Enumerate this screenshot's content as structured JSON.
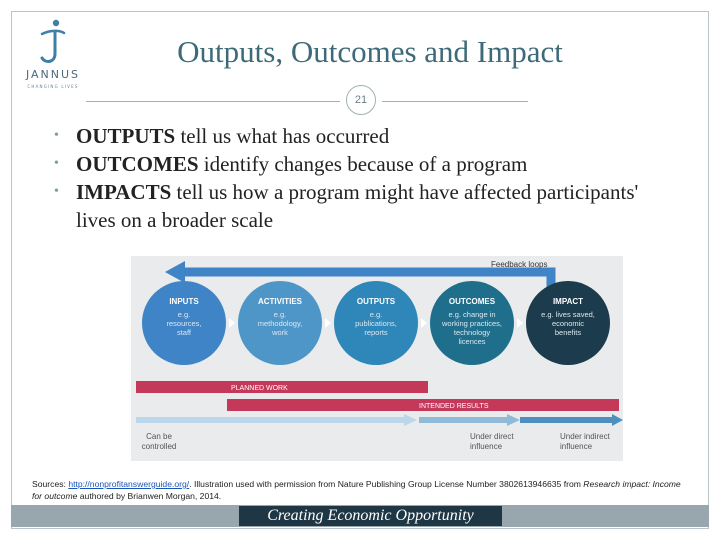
{
  "slide": {
    "title": "Outputs, Outcomes and Impact",
    "number": "21",
    "logo": {
      "word": "JANNUS",
      "tagline": "CHANGING LIVES"
    },
    "bullets": [
      {
        "bold": "OUTPUTS",
        "rest": " tell us what has occurred"
      },
      {
        "bold": "OUTCOMES",
        "rest": " identify changes because of a program"
      },
      {
        "bold": "IMPACTS",
        "rest": " tell us how a program might have affected participants' lives on a broader scale"
      }
    ],
    "footer": "Creating Economic Opportunity"
  },
  "diagram": {
    "feedback_label": "Feedback loops",
    "stages": [
      {
        "title": "INPUTS",
        "detail_lines": [
          "e.g.",
          "resources,",
          "staff"
        ],
        "color": "#3f84c6"
      },
      {
        "title": "ACTIVITIES",
        "detail_lines": [
          "e.g.",
          "methodology,",
          "work"
        ],
        "color": "#4f96c8"
      },
      {
        "title": "OUTPUTS",
        "detail_lines": [
          "e.g.",
          "publications,",
          "reports"
        ],
        "color": "#2f86b8"
      },
      {
        "title": "OUTCOMES",
        "detail_lines": [
          "e.g. change in",
          "working practices,",
          "technology",
          "licences"
        ],
        "color": "#1f6f8c"
      },
      {
        "title": "IMPACT",
        "detail_lines": [
          "e.g. lives saved,",
          "economic",
          "benefits"
        ],
        "color": "#1c3b4c"
      }
    ],
    "bars": [
      {
        "label": "PLANNED WORK",
        "color": "#c4385a"
      },
      {
        "label": "INTENDED RESULTS",
        "color": "#c4385a"
      }
    ],
    "influence": [
      {
        "lines": [
          "Can be",
          "controlled"
        ]
      },
      {
        "lines": [
          "Under direct",
          "influence"
        ]
      },
      {
        "lines": [
          "Under indirect",
          "influence"
        ]
      }
    ],
    "colors": {
      "arrow": "#3f84c6",
      "background": "#e9ebec",
      "influence_text": "#555555"
    }
  },
  "source": {
    "prefix": "Sources: ",
    "link": "http://nonprofitanswerguide.org/",
    "text": ". Illustration used with permission from Nature Publishing Group License Number 3802613946635 from ",
    "italic1": "Research impact: Income for outcome",
    "text2": " authored by Brianwen Morgan, 2014."
  }
}
